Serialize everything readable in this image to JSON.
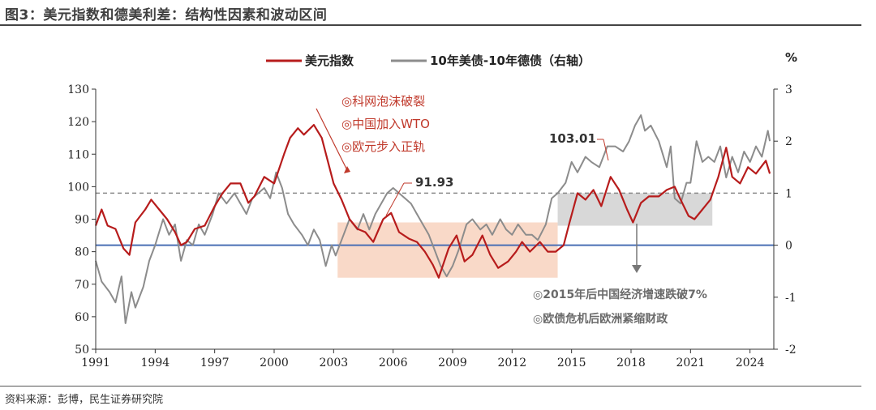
{
  "figure_title": "图3：美元指数和德美利差：结构性因素和波动区间",
  "source_note": "资料来源：彭博，民生证券研究院",
  "colors": {
    "usd": "#b71c1c",
    "spread": "#8c8c8c",
    "zero_line": "#4a6fb5",
    "pink_box": "#f7c9b0",
    "gray_box": "#c8c8c8",
    "dashed": "#8a8a8a",
    "annot_red": "#c0392b"
  },
  "chart_data": {
    "type": "line",
    "legend": [
      "美元指数",
      "10年美债-10年德债（右轴）"
    ],
    "right_unit": "%",
    "xlim": [
      1991,
      2025.2
    ],
    "ylim_left": [
      50,
      130
    ],
    "ylim_right": [
      -2,
      3
    ],
    "x_ticks": [
      "1991",
      "1994",
      "1997",
      "2000",
      "2003",
      "2006",
      "2009",
      "2012",
      "2015",
      "2018",
      "2021",
      "2024"
    ],
    "y_left_ticks": [
      "50",
      "60",
      "70",
      "80",
      "90",
      "100",
      "110",
      "120",
      "130"
    ],
    "y_right_ticks": [
      "-2",
      "-1",
      "0",
      "1",
      "2",
      "3"
    ],
    "series": [
      {
        "name": "美元指数",
        "axis": "left",
        "points": [
          [
            1991.0,
            88
          ],
          [
            1991.3,
            93
          ],
          [
            1991.6,
            88
          ],
          [
            1992.0,
            87
          ],
          [
            1992.4,
            81
          ],
          [
            1992.7,
            79
          ],
          [
            1993.0,
            89
          ],
          [
            1993.5,
            93
          ],
          [
            1993.8,
            96
          ],
          [
            1994.2,
            93
          ],
          [
            1994.6,
            90
          ],
          [
            1995.0,
            86
          ],
          [
            1995.3,
            82
          ],
          [
            1995.6,
            83
          ],
          [
            1996.0,
            87
          ],
          [
            1996.5,
            88
          ],
          [
            1997.0,
            94
          ],
          [
            1997.4,
            98
          ],
          [
            1997.8,
            101
          ],
          [
            1998.3,
            101
          ],
          [
            1998.7,
            95
          ],
          [
            1999.0,
            97
          ],
          [
            1999.5,
            103
          ],
          [
            2000.0,
            101
          ],
          [
            2000.5,
            110
          ],
          [
            2000.8,
            115
          ],
          [
            2001.2,
            118
          ],
          [
            2001.5,
            116
          ],
          [
            2002.0,
            119
          ],
          [
            2002.4,
            115
          ],
          [
            2002.7,
            108
          ],
          [
            2003.0,
            101
          ],
          [
            2003.4,
            96
          ],
          [
            2003.8,
            90
          ],
          [
            2004.2,
            87
          ],
          [
            2004.6,
            86
          ],
          [
            2005.0,
            83
          ],
          [
            2005.5,
            90
          ],
          [
            2005.9,
            91.93
          ],
          [
            2006.3,
            86
          ],
          [
            2006.8,
            84
          ],
          [
            2007.2,
            83
          ],
          [
            2007.6,
            80
          ],
          [
            2008.0,
            76
          ],
          [
            2008.3,
            72
          ],
          [
            2008.8,
            81
          ],
          [
            2009.2,
            85
          ],
          [
            2009.6,
            77
          ],
          [
            2010.0,
            79
          ],
          [
            2010.5,
            85
          ],
          [
            2010.9,
            79
          ],
          [
            2011.3,
            75
          ],
          [
            2011.8,
            77
          ],
          [
            2012.2,
            80
          ],
          [
            2012.5,
            83
          ],
          [
            2012.9,
            80
          ],
          [
            2013.4,
            83
          ],
          [
            2013.8,
            80
          ],
          [
            2014.2,
            80
          ],
          [
            2014.6,
            82
          ],
          [
            2014.9,
            89
          ],
          [
            2015.3,
            98
          ],
          [
            2015.7,
            96
          ],
          [
            2016.1,
            99
          ],
          [
            2016.5,
            94
          ],
          [
            2016.97,
            103.01
          ],
          [
            2017.4,
            99
          ],
          [
            2017.8,
            93
          ],
          [
            2018.1,
            89
          ],
          [
            2018.5,
            95
          ],
          [
            2018.9,
            97
          ],
          [
            2019.4,
            97
          ],
          [
            2019.8,
            99
          ],
          [
            2020.2,
            100
          ],
          [
            2020.5,
            96
          ],
          [
            2020.9,
            91
          ],
          [
            2021.2,
            90
          ],
          [
            2021.6,
            93
          ],
          [
            2022.0,
            96
          ],
          [
            2022.4,
            103
          ],
          [
            2022.8,
            112
          ],
          [
            2023.1,
            103
          ],
          [
            2023.5,
            101
          ],
          [
            2023.9,
            106
          ],
          [
            2024.3,
            104
          ],
          [
            2024.8,
            108
          ],
          [
            2025.0,
            104
          ]
        ]
      },
      {
        "name": "10年美债-10年德债（右轴）",
        "axis": "right",
        "points": [
          [
            1991.0,
            -0.3
          ],
          [
            1991.3,
            -0.7
          ],
          [
            1991.7,
            -0.9
          ],
          [
            1992.0,
            -1.1
          ],
          [
            1992.3,
            -0.6
          ],
          [
            1992.5,
            -1.5
          ],
          [
            1992.8,
            -0.9
          ],
          [
            1993.0,
            -1.2
          ],
          [
            1993.4,
            -0.8
          ],
          [
            1993.7,
            -0.3
          ],
          [
            1994.0,
            0.0
          ],
          [
            1994.4,
            0.5
          ],
          [
            1994.7,
            0.2
          ],
          [
            1995.0,
            0.4
          ],
          [
            1995.3,
            -0.3
          ],
          [
            1995.6,
            0.1
          ],
          [
            1995.9,
            0.0
          ],
          [
            1996.2,
            0.4
          ],
          [
            1996.5,
            0.2
          ],
          [
            1996.9,
            0.6
          ],
          [
            1997.2,
            1.0
          ],
          [
            1997.6,
            0.8
          ],
          [
            1998.0,
            1.0
          ],
          [
            1998.3,
            0.8
          ],
          [
            1998.6,
            0.6
          ],
          [
            1998.9,
            0.9
          ],
          [
            1999.2,
            1.0
          ],
          [
            1999.5,
            1.1
          ],
          [
            1999.8,
            0.9
          ],
          [
            2000.1,
            1.4
          ],
          [
            2000.4,
            1.1
          ],
          [
            2000.7,
            0.6
          ],
          [
            2001.0,
            0.4
          ],
          [
            2001.4,
            0.2
          ],
          [
            2001.7,
            0.0
          ],
          [
            2002.0,
            0.3
          ],
          [
            2002.3,
            0.1
          ],
          [
            2002.6,
            -0.4
          ],
          [
            2002.9,
            0.0
          ],
          [
            2003.1,
            -0.2
          ],
          [
            2003.5,
            0.2
          ],
          [
            2003.8,
            0.5
          ],
          [
            2004.2,
            0.3
          ],
          [
            2004.5,
            0.6
          ],
          [
            2004.8,
            0.3
          ],
          [
            2005.1,
            0.6
          ],
          [
            2005.4,
            0.8
          ],
          [
            2005.7,
            1.0
          ],
          [
            2006.0,
            1.1
          ],
          [
            2006.3,
            1.0
          ],
          [
            2006.6,
            0.9
          ],
          [
            2006.9,
            0.8
          ],
          [
            2007.2,
            0.6
          ],
          [
            2007.5,
            0.4
          ],
          [
            2007.8,
            0.2
          ],
          [
            2008.1,
            -0.1
          ],
          [
            2008.4,
            -0.4
          ],
          [
            2008.7,
            -0.6
          ],
          [
            2009.0,
            -0.4
          ],
          [
            2009.3,
            -0.1
          ],
          [
            2009.7,
            0.4
          ],
          [
            2010.0,
            0.5
          ],
          [
            2010.4,
            0.3
          ],
          [
            2010.7,
            0.4
          ],
          [
            2011.0,
            0.2
          ],
          [
            2011.4,
            0.5
          ],
          [
            2011.7,
            0.3
          ],
          [
            2012.0,
            0.2
          ],
          [
            2012.3,
            0.4
          ],
          [
            2012.7,
            0.2
          ],
          [
            2013.0,
            0.2
          ],
          [
            2013.3,
            0.1
          ],
          [
            2013.7,
            0.4
          ],
          [
            2014.0,
            0.9
          ],
          [
            2014.3,
            1.0
          ],
          [
            2014.7,
            1.2
          ],
          [
            2015.0,
            1.6
          ],
          [
            2015.3,
            1.4
          ],
          [
            2015.7,
            1.7
          ],
          [
            2016.0,
            1.6
          ],
          [
            2016.4,
            1.5
          ],
          [
            2016.8,
            1.9
          ],
          [
            2017.2,
            1.9
          ],
          [
            2017.6,
            1.8
          ],
          [
            2017.9,
            2.0
          ],
          [
            2018.2,
            2.3
          ],
          [
            2018.5,
            2.5
          ],
          [
            2018.7,
            2.2
          ],
          [
            2019.0,
            2.3
          ],
          [
            2019.4,
            2.0
          ],
          [
            2019.8,
            1.5
          ],
          [
            2020.0,
            1.9
          ],
          [
            2020.2,
            0.9
          ],
          [
            2020.5,
            0.8
          ],
          [
            2020.8,
            1.2
          ],
          [
            2021.0,
            1.2
          ],
          [
            2021.3,
            2.0
          ],
          [
            2021.6,
            1.6
          ],
          [
            2021.9,
            1.7
          ],
          [
            2022.2,
            1.6
          ],
          [
            2022.5,
            1.9
          ],
          [
            2022.8,
            1.3
          ],
          [
            2023.1,
            1.7
          ],
          [
            2023.4,
            1.4
          ],
          [
            2023.7,
            1.8
          ],
          [
            2024.0,
            1.6
          ],
          [
            2024.3,
            1.9
          ],
          [
            2024.6,
            1.7
          ],
          [
            2024.9,
            2.2
          ],
          [
            2025.0,
            2.0
          ]
        ]
      }
    ],
    "reference_lines": [
      {
        "axis": "right",
        "value": 0,
        "style": "solid"
      },
      {
        "axis": "right",
        "value": 1,
        "style": "dashed"
      }
    ],
    "shaded_ranges": [
      {
        "x": [
          2003.2,
          2014.3
        ],
        "y_left": [
          72,
          89
        ]
      },
      {
        "x": [
          2014.3,
          2022.1
        ],
        "y_left": [
          88,
          98
        ]
      }
    ],
    "callouts": [
      {
        "label": "91.93",
        "x": 2005.9,
        "y": 91.93
      },
      {
        "label": "103.01",
        "x": 2016.97,
        "y": 103.01
      }
    ],
    "annotations_red": [
      "◎科网泡沫破裂",
      "◎中国加入WTO",
      "◎欧元步入正轨"
    ],
    "annotations_gray": [
      "◎2015年后中国经济增速跌破7%",
      "◎欧债危机后欧洲紧缩财政"
    ]
  }
}
